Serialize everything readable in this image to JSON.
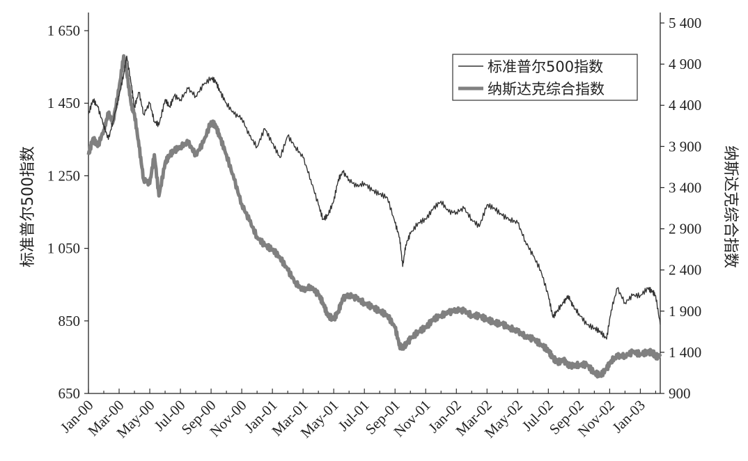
{
  "chart_data": {
    "type": "line",
    "xlabel": "",
    "y_left_label": "标准普尔500指数",
    "y_right_label": "纳斯达克综合指数",
    "x_tick_labels": [
      "Jan-00",
      "Mar-00",
      "May-00",
      "Jul-00",
      "Sep-00",
      "Nov-00",
      "Jan-01",
      "Mar-01",
      "May-01",
      "Jul-01",
      "Sep-01",
      "Nov-01",
      "Jan-02",
      "Mar-02",
      "May-02",
      "Jul-02",
      "Sep-02",
      "Nov-02",
      "Jan-03"
    ],
    "x_months": [
      0,
      2,
      4,
      6,
      8,
      10,
      12,
      14,
      16,
      18,
      20,
      22,
      24,
      26,
      28,
      30,
      32,
      34,
      36
    ],
    "x_range_months": [
      0,
      37.3
    ],
    "y_left_ticks": [
      650,
      850,
      1050,
      1250,
      1450,
      1650
    ],
    "y_left_tick_labels": [
      "650",
      "850",
      "1 050",
      "1 250",
      "1 450",
      "1 650"
    ],
    "y_left_lim": [
      650,
      1700
    ],
    "y_right_ticks": [
      900,
      1400,
      1900,
      2400,
      2900,
      3400,
      3900,
      4400,
      4900,
      5400
    ],
    "y_right_tick_labels": [
      "900",
      "1 400",
      "1 900",
      "2 400",
      "2 900",
      "3 400",
      "3 900",
      "4 400",
      "4 900",
      "5 400"
    ],
    "y_right_lim": [
      900,
      5400
    ],
    "grid": false,
    "legend_position": "top-right",
    "series": [
      {
        "name": "标准普尔500指数",
        "axis": "left",
        "color": "#333333",
        "style": "thin",
        "x": [
          0,
          0.3,
          0.6,
          1.0,
          1.3,
          1.6,
          2.0,
          2.3,
          2.5,
          2.8,
          3.0,
          3.3,
          3.6,
          4.0,
          4.3,
          4.6,
          5.0,
          5.3,
          5.6,
          6.0,
          6.5,
          7.0,
          7.5,
          8.0,
          8.3,
          8.6,
          9.0,
          9.5,
          10.0,
          10.5,
          11.0,
          11.5,
          12.0,
          12.5,
          13.0,
          13.5,
          14.0,
          14.5,
          15.0,
          15.3,
          15.6,
          16.0,
          16.3,
          16.6,
          17.0,
          17.5,
          18.0,
          18.5,
          19.0,
          19.5,
          20.0,
          20.3,
          20.5,
          20.7,
          21.0,
          21.5,
          22.0,
          22.5,
          23.0,
          23.5,
          24.0,
          24.5,
          25.0,
          25.5,
          26.0,
          26.5,
          27.0,
          27.5,
          28.0,
          28.5,
          29.0,
          29.5,
          30.0,
          30.3,
          30.6,
          31.0,
          31.3,
          31.6,
          32.0,
          32.5,
          33.0,
          33.4,
          33.8,
          34.1,
          34.5,
          35.0,
          35.5,
          36.0,
          36.5,
          36.8,
          37.0,
          37.3
        ],
        "y": [
          1420,
          1460,
          1440,
          1390,
          1350,
          1400,
          1470,
          1530,
          1580,
          1500,
          1440,
          1480,
          1420,
          1450,
          1400,
          1390,
          1460,
          1440,
          1470,
          1460,
          1490,
          1470,
          1500,
          1520,
          1510,
          1480,
          1450,
          1420,
          1410,
          1360,
          1330,
          1380,
          1340,
          1300,
          1360,
          1330,
          1300,
          1240,
          1170,
          1130,
          1140,
          1180,
          1240,
          1260,
          1240,
          1220,
          1230,
          1210,
          1200,
          1190,
          1120,
          1080,
          1000,
          1060,
          1090,
          1120,
          1130,
          1160,
          1180,
          1150,
          1150,
          1160,
          1130,
          1110,
          1170,
          1160,
          1140,
          1130,
          1120,
          1070,
          1030,
          990,
          920,
          860,
          880,
          900,
          920,
          890,
          870,
          840,
          830,
          820,
          800,
          880,
          940,
          900,
          920,
          920,
          940,
          930,
          920,
          840
        ]
      },
      {
        "name": "纳斯达克综合指数",
        "axis": "right",
        "color": "#808080",
        "style": "thick",
        "x": [
          0,
          0.3,
          0.6,
          1.0,
          1.3,
          1.6,
          2.0,
          2.3,
          2.5,
          2.8,
          3.0,
          3.3,
          3.6,
          4.0,
          4.3,
          4.6,
          5.0,
          5.3,
          5.6,
          6.0,
          6.5,
          7.0,
          7.5,
          8.0,
          8.3,
          8.6,
          9.0,
          9.5,
          10.0,
          10.5,
          11.0,
          11.5,
          12.0,
          12.5,
          13.0,
          13.5,
          14.0,
          14.5,
          15.0,
          15.3,
          15.6,
          16.0,
          16.3,
          16.6,
          17.0,
          17.5,
          18.0,
          18.5,
          19.0,
          19.5,
          20.0,
          20.3,
          20.5,
          20.7,
          21.0,
          21.5,
          22.0,
          22.5,
          23.0,
          23.5,
          24.0,
          24.5,
          25.0,
          25.5,
          26.0,
          26.5,
          27.0,
          27.5,
          28.0,
          28.5,
          29.0,
          29.5,
          30.0,
          30.3,
          30.6,
          31.0,
          31.3,
          31.6,
          32.0,
          32.5,
          33.0,
          33.4,
          33.8,
          34.1,
          34.5,
          35.0,
          35.5,
          36.0,
          36.5,
          36.8,
          37.0,
          37.3
        ],
        "y": [
          3800,
          4000,
          3900,
          4100,
          4300,
          4200,
          4600,
          5000,
          4800,
          4400,
          4300,
          3900,
          3500,
          3450,
          3800,
          3300,
          3700,
          3800,
          3850,
          3900,
          3950,
          3800,
          3950,
          4200,
          4150,
          4000,
          3800,
          3500,
          3200,
          3000,
          2800,
          2700,
          2650,
          2550,
          2400,
          2250,
          2150,
          2200,
          2100,
          2000,
          1850,
          1800,
          1900,
          2050,
          2100,
          2050,
          2000,
          1950,
          1900,
          1850,
          1700,
          1480,
          1450,
          1500,
          1560,
          1650,
          1700,
          1800,
          1850,
          1880,
          1920,
          1900,
          1850,
          1840,
          1800,
          1760,
          1740,
          1700,
          1650,
          1600,
          1560,
          1500,
          1420,
          1330,
          1280,
          1300,
          1250,
          1230,
          1250,
          1250,
          1150,
          1120,
          1200,
          1300,
          1350,
          1360,
          1400,
          1380,
          1400,
          1400,
          1350,
          1350
        ]
      }
    ]
  }
}
